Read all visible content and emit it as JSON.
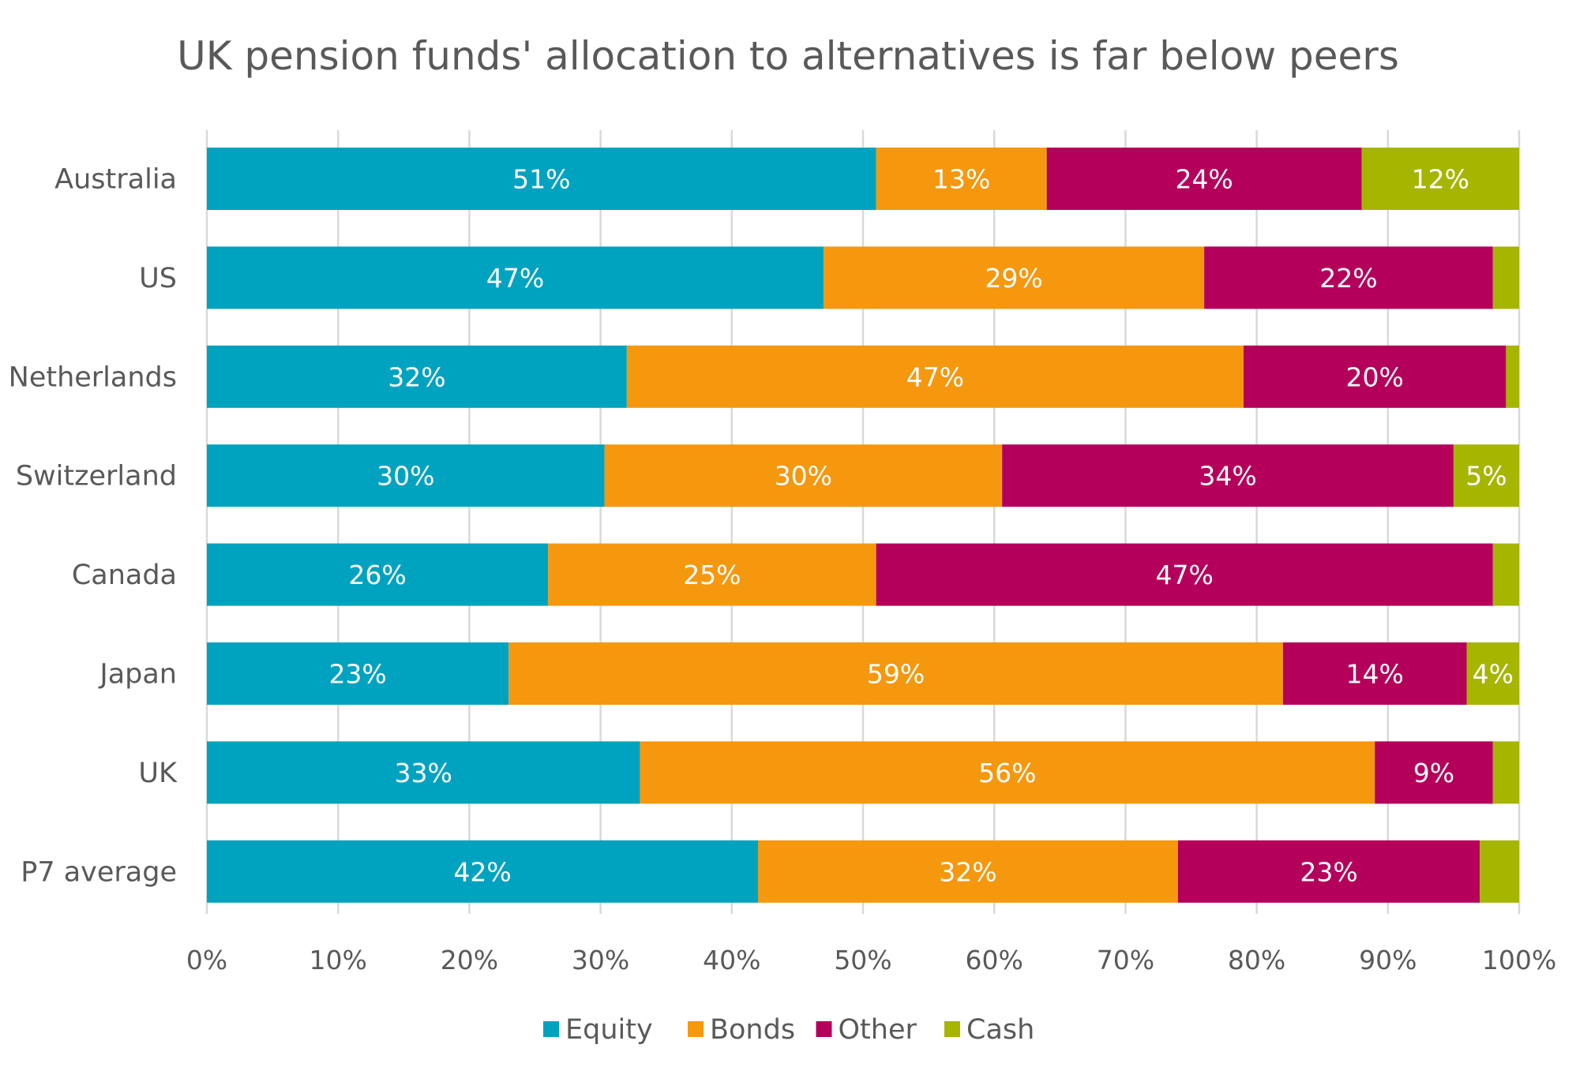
{
  "chart_data": {
    "type": "bar",
    "orientation": "horizontal",
    "stacked": true,
    "title": "UK pension funds' allocation to alternatives is far below peers",
    "xlabel": "",
    "ylabel": "",
    "xlim": [
      0,
      100
    ],
    "x_ticks": [
      "0%",
      "10%",
      "20%",
      "30%",
      "40%",
      "50%",
      "60%",
      "70%",
      "80%",
      "90%",
      "100%"
    ],
    "grid": true,
    "legend_position": "bottom",
    "categories": [
      "Australia",
      "US",
      "Netherlands",
      "Switzerland",
      "Canada",
      "Japan",
      "UK",
      "P7 average"
    ],
    "series": [
      {
        "name": "Equity",
        "color": "#00a3bf",
        "values": [
          51,
          47,
          32,
          30.3,
          26,
          23,
          33,
          42
        ],
        "labels": [
          "51%",
          "47%",
          "32%",
          "30%",
          "26%",
          "23%",
          "33%",
          "42%"
        ]
      },
      {
        "name": "Bonds",
        "color": "#f5980e",
        "values": [
          13,
          29,
          47,
          30.3,
          25,
          59,
          56,
          32
        ],
        "labels": [
          "13%",
          "29%",
          "47%",
          "30%",
          "25%",
          "59%",
          "56%",
          "32%"
        ]
      },
      {
        "name": "Other",
        "color": "#b5005b",
        "values": [
          24,
          22,
          20,
          34.4,
          47,
          14,
          9,
          23
        ],
        "labels": [
          "24%",
          "22%",
          "20%",
          "34%",
          "47%",
          "14%",
          "9%",
          "23%"
        ]
      },
      {
        "name": "Cash",
        "color": "#a6b500",
        "values": [
          12,
          2,
          1,
          5,
          2,
          4,
          2,
          3
        ],
        "labels": [
          "12%",
          "",
          "",
          "5%",
          "",
          "4%",
          "",
          ""
        ]
      }
    ]
  }
}
